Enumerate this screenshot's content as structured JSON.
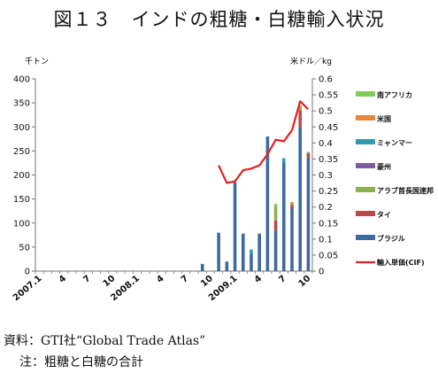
{
  "chart_data": {
    "type": "bar",
    "title": "図１３　インドの粗糖・白糖輸入状況",
    "y_left_unit": "千トン",
    "y_right_unit": "米ドル／kg",
    "ylim_left": [
      0,
      400
    ],
    "ylim_right": [
      0,
      0.6
    ],
    "y_left_ticks": [
      "0",
      "50",
      "100",
      "150",
      "200",
      "250",
      "300",
      "350",
      "400"
    ],
    "y_right_ticks": [
      "0",
      "0.05",
      "0.1",
      "0.15",
      "0.2",
      "0.25",
      "0.3",
      "0.35",
      "0.4",
      "0.45",
      "0.5",
      "0.55",
      "0.6"
    ],
    "grid": false,
    "legend_position": "right",
    "x_tick_labels": [
      {
        "index": 0,
        "label": "2007.1"
      },
      {
        "index": 3,
        "label": "4"
      },
      {
        "index": 6,
        "label": "7"
      },
      {
        "index": 9,
        "label": "10"
      },
      {
        "index": 12,
        "label": "2008.1"
      },
      {
        "index": 15,
        "label": "4"
      },
      {
        "index": 18,
        "label": "7"
      },
      {
        "index": 21,
        "label": "10"
      },
      {
        "index": 24,
        "label": "2009.1"
      },
      {
        "index": 27,
        "label": "4"
      },
      {
        "index": 30,
        "label": "7"
      },
      {
        "index": 33,
        "label": "10"
      }
    ],
    "months": [
      "2007.1",
      "2007.2",
      "2007.3",
      "2007.4",
      "2007.5",
      "2007.6",
      "2007.7",
      "2007.8",
      "2007.9",
      "2007.10",
      "2007.11",
      "2007.12",
      "2008.1",
      "2008.2",
      "2008.3",
      "2008.4",
      "2008.5",
      "2008.6",
      "2008.7",
      "2008.8",
      "2008.9",
      "2008.10",
      "2008.11",
      "2008.12",
      "2009.1",
      "2009.2",
      "2009.3",
      "2009.4",
      "2009.5",
      "2009.6",
      "2009.7",
      "2009.8",
      "2009.9",
      "2009.10"
    ],
    "series": [
      {
        "name": "ブラジル",
        "color": "#3d6a9e",
        "values": [
          0,
          0,
          0,
          0,
          0,
          0,
          0,
          0,
          0,
          0,
          0,
          0,
          0,
          0,
          0,
          0,
          0,
          0,
          0,
          0,
          15,
          0,
          80,
          20,
          185,
          78,
          35,
          78,
          280,
          85,
          225,
          130,
          300,
          235
        ]
      },
      {
        "name": "タイ",
        "color": "#b84a47",
        "values": [
          0,
          0,
          0,
          0,
          0,
          0,
          0,
          0,
          0,
          0,
          0,
          0,
          0,
          0,
          0,
          0,
          0,
          0,
          0,
          0,
          0,
          0,
          0,
          0,
          0,
          0,
          0,
          0,
          0,
          20,
          0,
          8,
          35,
          10
        ]
      },
      {
        "name": "アラブ首長国連邦",
        "color": "#8fb050",
        "values": [
          0,
          0,
          0,
          0,
          0,
          0,
          0,
          0,
          0,
          0,
          0,
          0,
          0,
          0,
          0,
          0,
          0,
          0,
          0,
          0,
          0,
          0,
          0,
          0,
          0,
          0,
          0,
          0,
          0,
          30,
          0,
          4,
          8,
          3
        ]
      },
      {
        "name": "豪州",
        "color": "#7b5e9e",
        "values": [
          0,
          0,
          0,
          0,
          0,
          0,
          0,
          0,
          0,
          0,
          0,
          0,
          0,
          0,
          0,
          0,
          0,
          0,
          0,
          0,
          0,
          0,
          0,
          0,
          0,
          0,
          0,
          0,
          0,
          0,
          0,
          0,
          0,
          0
        ]
      },
      {
        "name": "ミャンマー",
        "color": "#2f9aaf",
        "values": [
          0,
          0,
          0,
          0,
          0,
          0,
          0,
          0,
          0,
          0,
          0,
          0,
          0,
          0,
          0,
          0,
          0,
          0,
          0,
          0,
          0,
          0,
          0,
          0,
          0,
          0,
          10,
          0,
          0,
          0,
          10,
          0,
          0,
          0
        ]
      },
      {
        "name": "米国",
        "color": "#e8873a",
        "values": [
          0,
          0,
          0,
          0,
          0,
          0,
          0,
          0,
          0,
          0,
          0,
          0,
          0,
          0,
          0,
          0,
          0,
          0,
          0,
          0,
          0,
          0,
          0,
          0,
          0,
          0,
          0,
          0,
          0,
          0,
          0,
          2,
          2,
          0
        ]
      },
      {
        "name": "南アフリカ",
        "color": "#7fcb5a",
        "values": [
          0,
          0,
          0,
          0,
          0,
          0,
          0,
          0,
          0,
          0,
          0,
          0,
          0,
          0,
          0,
          0,
          0,
          0,
          0,
          0,
          0,
          0,
          0,
          0,
          0,
          0,
          0,
          0,
          0,
          5,
          0,
          0,
          0,
          0
        ]
      }
    ],
    "line_series": {
      "name": "輸入単価(CIF)",
      "color": "#e02020",
      "axis": "right",
      "points": [
        [
          22,
          0.33
        ],
        [
          23,
          0.275
        ],
        [
          24,
          0.28
        ],
        [
          25,
          0.315
        ],
        [
          26,
          0.32
        ],
        [
          27,
          0.33
        ],
        [
          28,
          0.365
        ],
        [
          29,
          0.41
        ],
        [
          30,
          0.405
        ],
        [
          31,
          0.44
        ],
        [
          32,
          0.53
        ],
        [
          33,
          0.505
        ]
      ]
    }
  },
  "notes": {
    "source": "資料：GTI社“Global Trade Atlas”",
    "note": "注：粗糖と白糖の合計"
  }
}
